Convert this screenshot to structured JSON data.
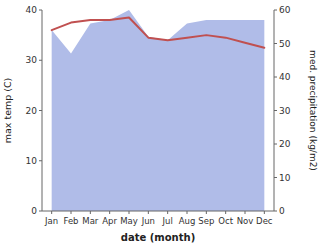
{
  "chart_data": {
    "type": "line",
    "categories": [
      "Jan",
      "Feb",
      "Mar",
      "Apr",
      "May",
      "Jun",
      "Jul",
      "Aug",
      "Sep",
      "Oct",
      "Nov",
      "Dec"
    ],
    "xlabel": "date (month)",
    "ylabel": "max temp (C)",
    "y2label": "med. precipitation (kg/m2)",
    "ylim": [
      0,
      40
    ],
    "yticks": [
      0,
      10,
      20,
      30,
      40
    ],
    "y2lim": [
      0,
      60
    ],
    "y2ticks": [
      0,
      10,
      20,
      30,
      40,
      50,
      60
    ],
    "grid": false,
    "series": [
      {
        "type": "area",
        "axis": "y2",
        "color": "#b0bce8",
        "values": [
          54,
          47,
          56,
          57,
          60,
          52,
          51,
          56,
          57,
          57,
          57,
          57
        ]
      },
      {
        "type": "line",
        "color": "#c05050",
        "values": [
          36.0,
          37.5,
          38.0,
          38.0,
          38.5,
          34.5,
          34.0,
          34.5,
          35.0,
          34.5,
          33.5,
          32.5
        ]
      }
    ]
  }
}
